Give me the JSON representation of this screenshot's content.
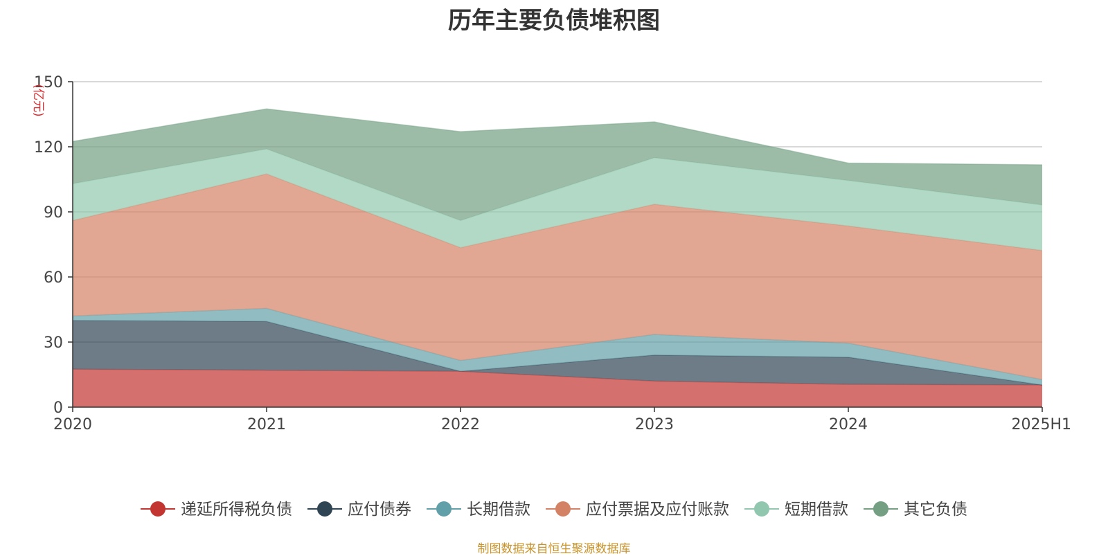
{
  "chart_data": {
    "type": "area",
    "stacked": true,
    "title": "历年主要负债堆积图",
    "ylabel": "(亿元)",
    "xlabel": "",
    "ylim": [
      0,
      150
    ],
    "yticks": [
      0,
      30,
      60,
      90,
      120,
      150
    ],
    "categories": [
      "2020",
      "2021",
      "2022",
      "2023",
      "2024",
      "2025H1"
    ],
    "series": [
      {
        "name": "递延所得税负债",
        "color": "#c23531",
        "values": [
          17.5,
          17.0,
          16.5,
          12.0,
          10.5,
          10.2
        ]
      },
      {
        "name": "应付债券",
        "color": "#2f4554",
        "values": [
          22.5,
          22.5,
          0,
          12.0,
          12.5,
          0
        ]
      },
      {
        "name": "长期借款",
        "color": "#61a0a8",
        "values": [
          2.0,
          6.0,
          5.0,
          9.5,
          6.5,
          2.5
        ]
      },
      {
        "name": "应付票据及应付账款",
        "color": "#d48265",
        "values": [
          44.0,
          62.0,
          52.0,
          60.0,
          54.0,
          59.5
        ]
      },
      {
        "name": "短期借款",
        "color": "#91c7ae",
        "values": [
          17.0,
          11.5,
          12.5,
          21.5,
          21.0,
          21.0
        ]
      },
      {
        "name": "其它负债",
        "color": "#749f83",
        "values": [
          19.5,
          18.5,
          41.0,
          16.5,
          8.0,
          18.5
        ]
      }
    ],
    "legend_position": "bottom",
    "grid": true
  },
  "source_text": "制图数据来自恒生聚源数据库",
  "colors": {
    "title": "#333333",
    "axis": "#333333",
    "grid": "#cccccc",
    "unit": "#e0292d",
    "source": "#c9932a"
  }
}
